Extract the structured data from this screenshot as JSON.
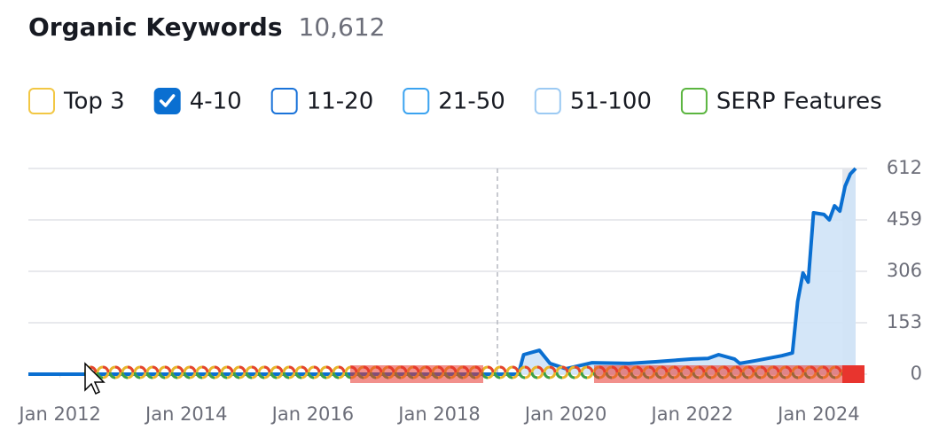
{
  "header": {
    "title": "Organic Keywords",
    "count": "10,612"
  },
  "chart_data": {
    "type": "line",
    "filters": [
      {
        "label": "Top 3",
        "color": "#f2c744",
        "checked": false
      },
      {
        "label": "4-10",
        "color": "#0a6fd1",
        "checked": true
      },
      {
        "label": "11-20",
        "color": "#1a73d9",
        "checked": false
      },
      {
        "label": "21-50",
        "color": "#3ba3f0",
        "checked": false
      },
      {
        "label": "51-100",
        "color": "#9ccaf3",
        "checked": false
      },
      {
        "label": "SERP Features",
        "color": "#5bb540",
        "checked": false
      }
    ],
    "x": [
      "2011-07",
      "2012-01",
      "2013-01",
      "2014-01",
      "2015-01",
      "2016-01",
      "2017-01",
      "2018-01",
      "2019-01",
      "2019-04",
      "2019-05",
      "2019-08",
      "2019-10",
      "2020-01",
      "2020-06",
      "2021-01",
      "2021-06",
      "2022-01",
      "2022-04",
      "2022-06",
      "2022-09",
      "2022-10",
      "2023-01",
      "2023-06",
      "2023-08",
      "2023-09",
      "2023-10",
      "2023-11",
      "2023-12",
      "2024-02",
      "2024-03",
      "2024-04",
      "2024-05",
      "2024-06",
      "2024-07",
      "2024-08"
    ],
    "series": [
      {
        "color": "#0a6fd1",
        "fill": "#cfe3f7",
        "values": [
          0,
          0,
          0,
          0,
          0,
          0,
          0,
          0,
          0,
          0,
          58,
          71,
          32,
          16,
          34,
          32,
          37,
          45,
          47,
          58,
          45,
          32,
          40,
          55,
          63,
          216,
          301,
          274,
          480,
          475,
          459,
          501,
          485,
          559,
          596,
          612
        ]
      }
    ],
    "xlim": [
      "2011-07",
      "2024-08"
    ],
    "xticks": [
      {
        "value": "2012-01",
        "label": "Jan 2012"
      },
      {
        "value": "2014-01",
        "label": "Jan 2014"
      },
      {
        "value": "2016-01",
        "label": "Jan 2016"
      },
      {
        "value": "2018-01",
        "label": "Jan 2018"
      },
      {
        "value": "2020-01",
        "label": "Jan 2020"
      },
      {
        "value": "2022-01",
        "label": "Jan 2022"
      },
      {
        "value": "2024-01",
        "label": "Jan 2024"
      }
    ],
    "ylim": [
      0,
      612
    ],
    "yticks": [
      0,
      153,
      306,
      459,
      612
    ],
    "grid": true
  }
}
